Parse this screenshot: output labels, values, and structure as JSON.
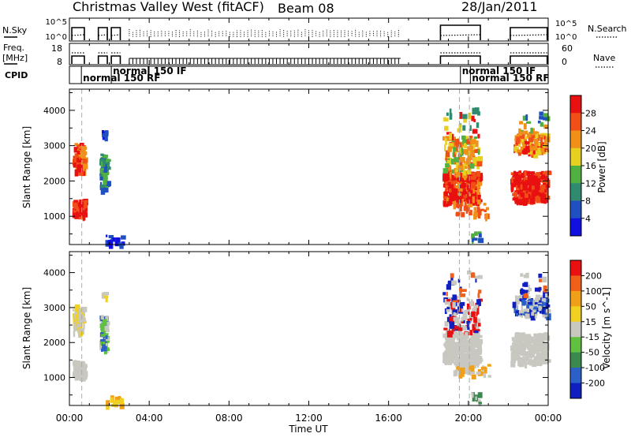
{
  "header": {
    "title": "Christmas Valley West (fitACF)",
    "beam": "Beam 08",
    "date": "28/Jan/2011"
  },
  "chart_data": [
    {
      "type": "line",
      "panel": "noise",
      "labels": {
        "left_top": "N.Sky",
        "right": "N.Search"
      },
      "y_ticks_left": [
        "10^5",
        "10^0"
      ],
      "y_ticks_right": [
        "10^5",
        "10^0"
      ],
      "xlim_hours": [
        0,
        24
      ]
    },
    {
      "type": "line",
      "panel": "frequency",
      "labels": {
        "left_top": "Freq.",
        "left_bottom": "[MHz]",
        "right": "Nave"
      },
      "y_ticks_left": [
        "18",
        "8"
      ],
      "y_ticks_right": [
        "60",
        "0"
      ],
      "xlim_hours": [
        0,
        24
      ]
    },
    {
      "type": "table",
      "panel": "cpid",
      "label": "CPID",
      "entries": [
        {
          "text": "normal 150 RF",
          "start": 0.6,
          "row": 1
        },
        {
          "text": "normal 150 IF",
          "start": 2.1,
          "row": 0
        },
        {
          "text": "normal 150 IF",
          "start": 19.6,
          "row": 0
        },
        {
          "text": "normal 150 RF",
          "start": 20.1,
          "row": 1
        }
      ]
    },
    {
      "type": "heatmap",
      "panel": "power",
      "ylabel": "Slant Range [km]",
      "yticks": [
        1000,
        2000,
        3000,
        4000
      ],
      "ylim": [
        200,
        4600
      ],
      "colorbar": {
        "label": "Power [dB]",
        "ticks": [
          "28",
          "24",
          "20",
          "16",
          "12",
          "8",
          "4"
        ],
        "range": [
          0,
          32
        ]
      },
      "colors": [
        "#1010e0",
        "#2050c0",
        "#2f8a70",
        "#50b040",
        "#e8d020",
        "#f09018",
        "#f05018",
        "#e81010"
      ]
    },
    {
      "type": "heatmap",
      "panel": "velocity",
      "ylabel": "Slant Range [km]",
      "yticks": [
        1000,
        2000,
        3000,
        4000
      ],
      "ylim": [
        200,
        4600
      ],
      "colorbar": {
        "label": "Velocity [m s^-1]",
        "ticks": [
          "200",
          "100",
          "50",
          "15",
          "-15",
          "-50",
          "-100",
          "-200"
        ]
      },
      "colors": [
        "#1020c0",
        "#2a60c8",
        "#3a8a50",
        "#60c040",
        "#c8c8c0",
        "#f0d020",
        "#f0a018",
        "#f06018",
        "#e81010"
      ]
    }
  ],
  "xaxis": {
    "label": "Time UT",
    "ticks": [
      "00:00",
      "04:00",
      "08:00",
      "12:00",
      "16:00",
      "20:00",
      "00:00"
    ],
    "range_hours": [
      0,
      24
    ]
  }
}
